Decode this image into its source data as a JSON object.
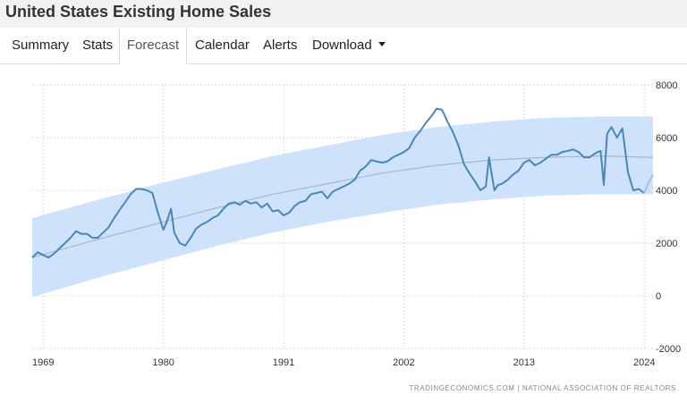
{
  "header": {
    "title": "United States Existing Home Sales"
  },
  "tabs": [
    {
      "label": "Summary",
      "active": false
    },
    {
      "label": "Stats",
      "active": false
    },
    {
      "label": "Forecast",
      "active": true
    },
    {
      "label": "Calendar",
      "active": false
    },
    {
      "label": "Alerts",
      "active": false
    },
    {
      "label": "Download",
      "active": false,
      "icon": "caret-down-icon"
    }
  ],
  "footer": {
    "credit": "TRADINGECONOMICS.COM  |  NATIONAL ASSOCIATION OF REALTORS"
  },
  "chart_data": {
    "type": "line",
    "title": "",
    "xlabel": "",
    "ylabel": "",
    "xlim": [
      1968,
      2024.8
    ],
    "ylim": [
      -2000,
      8000
    ],
    "grid": true,
    "y_ticks": [
      8000,
      6000,
      4000,
      2000,
      0,
      -2000
    ],
    "y_tick_labels": [
      "8000",
      "6000",
      "4000",
      "2000",
      "0",
      "-2000"
    ],
    "x_ticks": [
      1969,
      1980,
      1991,
      2002,
      2013,
      2024
    ],
    "x_tick_labels": [
      "1969",
      "1980",
      "1991",
      "2002",
      "2013",
      "2024"
    ],
    "colors": {
      "line": "#4a86b8",
      "band": "#cfe2fb",
      "trend": "#a7b7c9",
      "grid": "#d9d9d9"
    },
    "series": [
      {
        "x": [
          1968.0,
          1968.5,
          1969.0,
          1969.5,
          1970.0,
          1970.5,
          1971.0,
          1971.5,
          1972.0,
          1972.5,
          1973.0,
          1973.5,
          1974.0,
          1974.5,
          1975.0,
          1975.5,
          1976.0,
          1976.5,
          1977.0,
          1977.5,
          1978.0,
          1978.5,
          1979.0,
          1979.5,
          1980.0,
          1980.3,
          1980.7,
          1981.0,
          1981.5,
          1982.0,
          1982.5,
          1983.0,
          1983.5,
          1984.0,
          1984.5,
          1985.0,
          1985.5,
          1986.0,
          1986.5,
          1987.0,
          1987.5,
          1988.0,
          1988.5,
          1989.0,
          1989.5,
          1990.0,
          1990.5,
          1991.0,
          1991.5,
          1992.0,
          1992.5,
          1993.0,
          1993.5,
          1994.0,
          1994.5,
          1995.0,
          1995.5,
          1996.0,
          1996.5,
          1997.0,
          1997.5,
          1998.0,
          1998.5,
          1999.0,
          1999.5,
          2000.0,
          2000.5,
          2001.0,
          2001.5,
          2002.0,
          2002.5,
          2003.0,
          2003.5,
          2004.0,
          2004.5,
          2005.0,
          2005.5,
          2006.0,
          2006.5,
          2007.0,
          2007.5,
          2008.0,
          2008.5,
          2009.0,
          2009.5,
          2009.8,
          2010.0,
          2010.3,
          2010.6,
          2011.0,
          2011.5,
          2012.0,
          2012.5,
          2013.0,
          2013.5,
          2014.0,
          2014.5,
          2015.0,
          2015.5,
          2016.0,
          2016.5,
          2017.0,
          2017.5,
          2018.0,
          2018.5,
          2019.0,
          2019.5,
          2020.0,
          2020.3,
          2020.6,
          2021.0,
          2021.5,
          2022.0,
          2022.5,
          2023.0,
          2023.5,
          2024.0
        ],
        "values": [
          1450,
          1650,
          1550,
          1450,
          1600,
          1800,
          2000,
          2200,
          2450,
          2350,
          2350,
          2200,
          2200,
          2400,
          2600,
          2950,
          3250,
          3550,
          3850,
          4050,
          4050,
          4000,
          3900,
          3150,
          2500,
          2800,
          3300,
          2400,
          2000,
          1900,
          2200,
          2550,
          2700,
          2800,
          2950,
          3050,
          3300,
          3500,
          3550,
          3450,
          3600,
          3500,
          3550,
          3350,
          3500,
          3200,
          3250,
          3050,
          3150,
          3400,
          3550,
          3600,
          3850,
          3900,
          3950,
          3700,
          3950,
          4050,
          4150,
          4250,
          4400,
          4750,
          4900,
          5150,
          5100,
          5050,
          5100,
          5250,
          5350,
          5450,
          5600,
          6000,
          6250,
          6550,
          6800,
          7100,
          7050,
          6600,
          6200,
          5700,
          5000,
          4650,
          4350,
          4000,
          4150,
          5250,
          4700,
          4000,
          4200,
          4250,
          4400,
          4600,
          4750,
          5050,
          5150,
          4950,
          5050,
          5200,
          5350,
          5350,
          5450,
          5500,
          5550,
          5450,
          5250,
          5250,
          5400,
          5500,
          4200,
          6150,
          6400,
          6000,
          6350,
          4700,
          4000,
          4050,
          3900
        ]
      },
      {
        "x": [
          2024.0,
          2024.4,
          2024.8
        ],
        "values": [
          3900,
          4300,
          4600
        ]
      }
    ],
    "forecast_band": {
      "x": [
        1968,
        1975,
        1980,
        1985,
        1990,
        1995,
        2000,
        2005,
        2010,
        2015,
        2020,
        2024.8
      ],
      "upper": [
        2950,
        3750,
        4300,
        4800,
        5300,
        5700,
        6100,
        6400,
        6600,
        6750,
        6800,
        6800
      ],
      "lower": [
        -50,
        800,
        1350,
        1900,
        2400,
        2800,
        3150,
        3450,
        3650,
        3800,
        3850,
        3850
      ]
    },
    "trend": {
      "x": [
        1968,
        1975,
        1980,
        1985,
        1990,
        1995,
        2000,
        2005,
        2010,
        2015,
        2020,
        2024.8
      ],
      "values": [
        1450,
        2250,
        2800,
        3350,
        3850,
        4250,
        4650,
        4950,
        5150,
        5250,
        5300,
        5250
      ]
    }
  }
}
